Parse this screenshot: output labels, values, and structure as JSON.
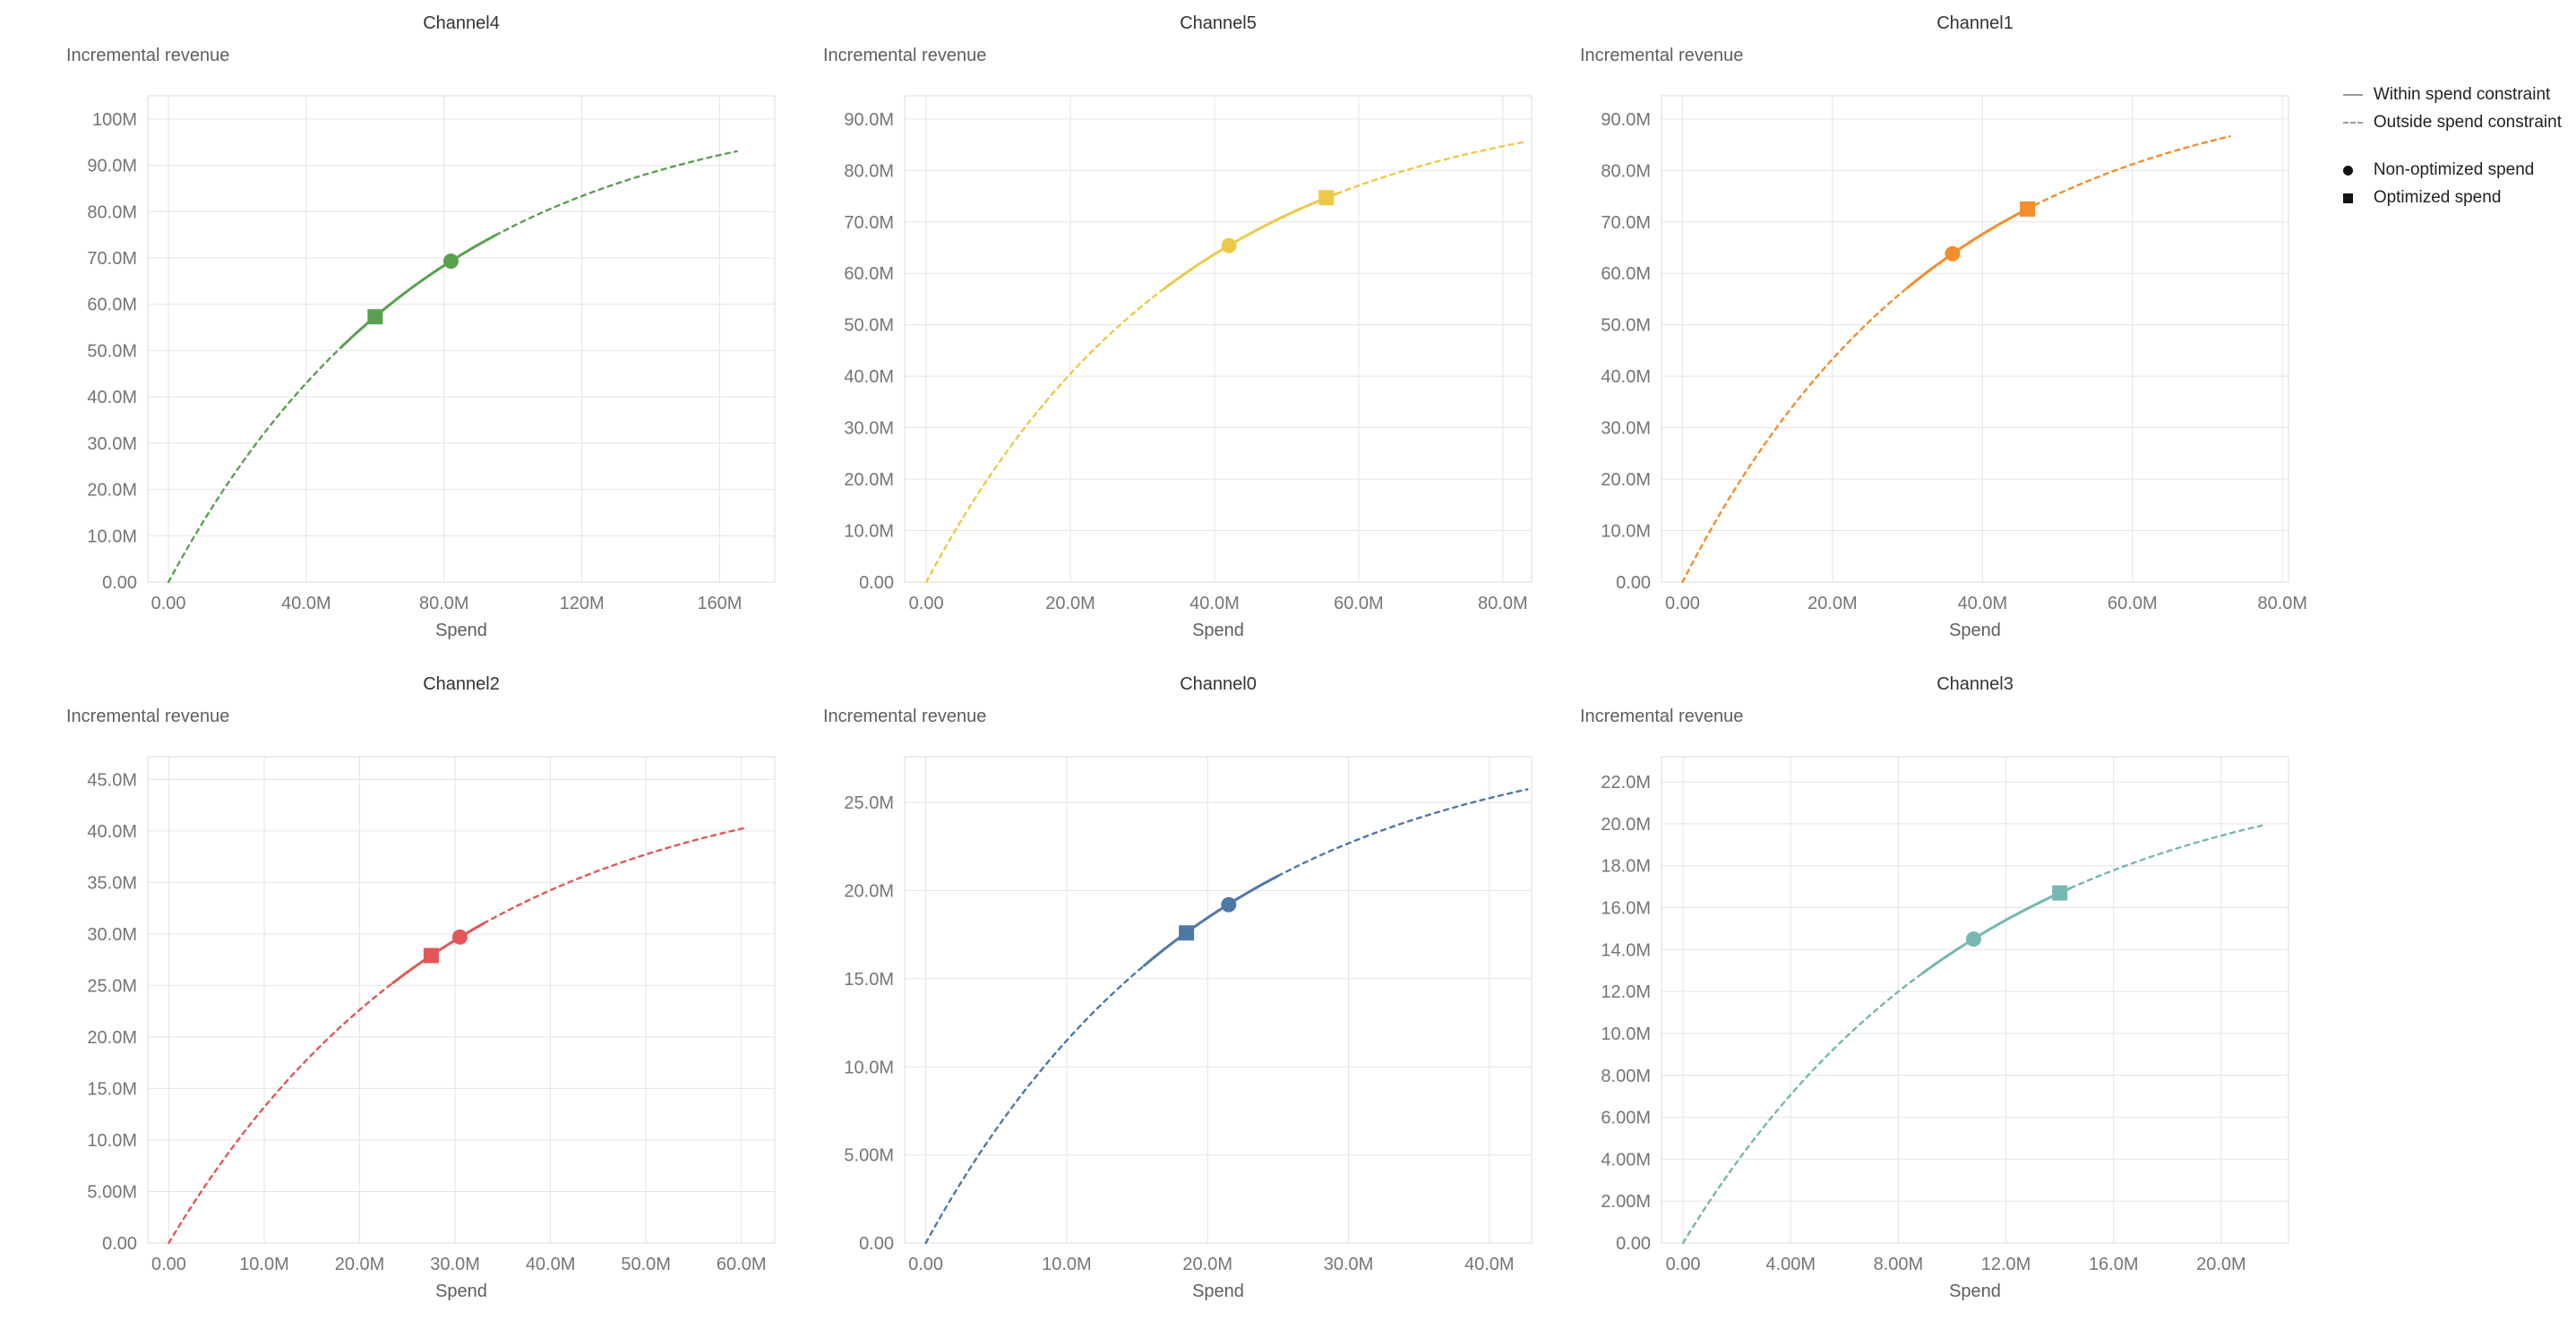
{
  "legend": {
    "items": [
      {
        "glyph": "solid-line",
        "label": "Within spend constraint"
      },
      {
        "glyph": "dashed-line",
        "label": "Outside spend constraint"
      },
      {
        "glyph": "circle",
        "label": "Non-optimized spend"
      },
      {
        "glyph": "square",
        "label": "Optimized spend"
      }
    ]
  },
  "chart_data": [
    {
      "type": "line",
      "title": "Channel4",
      "xlabel": "Spend",
      "ylabel": "Incremental revenue",
      "color": "#59a14f",
      "units": "millions",
      "xlim": [
        -6,
        176
      ],
      "ylim": [
        0,
        105
      ],
      "x_tick_values": [
        0,
        40,
        80,
        120,
        160
      ],
      "x_tick_labels": [
        "0.00",
        "40.0M",
        "80.0M",
        "120M",
        "160M"
      ],
      "y_tick_values": [
        0,
        10,
        20,
        30,
        40,
        50,
        60,
        70,
        80,
        90,
        100
      ],
      "y_tick_labels": [
        "0.00",
        "10.0M",
        "20.0M",
        "30.0M",
        "40.0M",
        "50.0M",
        "60.0M",
        "70.0M",
        "80.0M",
        "90.0M",
        "100M"
      ],
      "curve": {
        "model": "y = ymax*(1-exp(-x/tau))",
        "ymax": 105,
        "tau": 76,
        "x_start": 0,
        "x_end": 165
      },
      "solid_range": [
        50,
        95
      ],
      "points": {
        "non_optimized_spend": {
          "marker": "circle",
          "x": 82,
          "y": 69.3
        },
        "optimized_spend": {
          "marker": "square",
          "x": 60,
          "y": 57.3
        },
        "curve_end": {
          "x": 165,
          "y": 93.0
        }
      }
    },
    {
      "type": "line",
      "title": "Channel5",
      "xlabel": "Spend",
      "ylabel": "Incremental revenue",
      "color": "#edc948",
      "units": "millions",
      "xlim": [
        -3,
        84
      ],
      "ylim": [
        0,
        94.5
      ],
      "x_tick_values": [
        0,
        20,
        40,
        60,
        80
      ],
      "x_tick_labels": [
        "0.00",
        "20.0M",
        "40.0M",
        "60.0M",
        "80.0M"
      ],
      "y_tick_values": [
        0,
        10,
        20,
        30,
        40,
        50,
        60,
        70,
        80,
        90
      ],
      "y_tick_labels": [
        "0.00",
        "10.0M",
        "20.0M",
        "30.0M",
        "40.0M",
        "50.0M",
        "60.0M",
        "70.0M",
        "80.0M",
        "90.0M"
      ],
      "curve": {
        "model": "y = ymax*(1-exp(-x/tau))",
        "ymax": 95,
        "tau": 36,
        "x_start": 0,
        "x_end": 83
      },
      "solid_range": [
        33,
        57
      ],
      "points": {
        "non_optimized_spend": {
          "marker": "circle",
          "x": 42,
          "y": 65.4
        },
        "optimized_spend": {
          "marker": "square",
          "x": 55.5,
          "y": 74.7
        },
        "curve_end": {
          "x": 83,
          "y": 85.5
        }
      }
    },
    {
      "type": "line",
      "title": "Channel1",
      "xlabel": "Spend",
      "ylabel": "Incremental revenue",
      "color": "#f28e2b",
      "units": "millions",
      "xlim": [
        -2.8,
        80.8
      ],
      "ylim": [
        0,
        94.5
      ],
      "x_tick_values": [
        0,
        20,
        40,
        60,
        80
      ],
      "x_tick_labels": [
        "0.00",
        "20.0M",
        "40.0M",
        "60.0M",
        "80.0M"
      ],
      "y_tick_values": [
        0,
        10,
        20,
        30,
        40,
        50,
        60,
        70,
        80,
        90
      ],
      "y_tick_labels": [
        "0.00",
        "10.0M",
        "20.0M",
        "30.0M",
        "40.0M",
        "50.0M",
        "60.0M",
        "70.0M",
        "80.0M",
        "90.0M"
      ],
      "curve": {
        "model": "y = ymax*(1-exp(-x/tau))",
        "ymax": 98.5,
        "tau": 34.5,
        "x_start": 0,
        "x_end": 73
      },
      "solid_range": [
        30,
        47
      ],
      "points": {
        "non_optimized_spend": {
          "marker": "circle",
          "x": 36,
          "y": 63.8
        },
        "optimized_spend": {
          "marker": "square",
          "x": 46,
          "y": 72.5
        },
        "curve_end": {
          "x": 73,
          "y": 86.6
        }
      }
    },
    {
      "type": "line",
      "title": "Channel2",
      "xlabel": "Spend",
      "ylabel": "Incremental revenue",
      "color": "#e15759",
      "units": "millions",
      "xlim": [
        -2.2,
        63.5
      ],
      "ylim": [
        0,
        47.2
      ],
      "x_tick_values": [
        0,
        10,
        20,
        30,
        40,
        50,
        60
      ],
      "x_tick_labels": [
        "0.00",
        "10.0M",
        "20.0M",
        "30.0M",
        "40.0M",
        "50.0M",
        "60.0M"
      ],
      "y_tick_values": [
        0,
        5,
        10,
        15,
        20,
        25,
        30,
        35,
        40,
        45
      ],
      "y_tick_labels": [
        "0.00",
        "5.00M",
        "10.0M",
        "15.0M",
        "20.0M",
        "25.0M",
        "30.0M",
        "35.0M",
        "40.0M",
        "45.0M"
      ],
      "curve": {
        "model": "y = ymax*(1-exp(-x/tau))",
        "ymax": 46.5,
        "tau": 30,
        "x_start": 0,
        "x_end": 60.5
      },
      "solid_range": [
        23.5,
        33
      ],
      "points": {
        "non_optimized_spend": {
          "marker": "circle",
          "x": 30.5,
          "y": 29.7
        },
        "optimized_spend": {
          "marker": "square",
          "x": 27.5,
          "y": 27.9
        },
        "curve_end": {
          "x": 60.5,
          "y": 40.3
        }
      }
    },
    {
      "type": "line",
      "title": "Channel0",
      "xlabel": "Spend",
      "ylabel": "Incremental revenue",
      "color": "#4e79a7",
      "units": "millions",
      "xlim": [
        -1.5,
        43
      ],
      "ylim": [
        0,
        27.6
      ],
      "x_tick_values": [
        0,
        10,
        20,
        30,
        40
      ],
      "x_tick_labels": [
        "0.00",
        "10.0M",
        "20.0M",
        "30.0M",
        "40.0M"
      ],
      "y_tick_values": [
        0,
        5,
        10,
        15,
        20,
        25
      ],
      "y_tick_labels": [
        "0.00",
        "5.00M",
        "10.0M",
        "15.0M",
        "20.0M",
        "25.0M"
      ],
      "curve": {
        "model": "y = ymax*(1-exp(-x/tau))",
        "ymax": 29.2,
        "tau": 20,
        "x_start": 0,
        "x_end": 42.7
      },
      "solid_range": [
        15.5,
        25
      ],
      "points": {
        "non_optimized_spend": {
          "marker": "circle",
          "x": 21.5,
          "y": 19.2
        },
        "optimized_spend": {
          "marker": "square",
          "x": 18.5,
          "y": 17.6
        },
        "curve_end": {
          "x": 42.7,
          "y": 25.8
        }
      }
    },
    {
      "type": "line",
      "title": "Channel3",
      "xlabel": "Spend",
      "ylabel": "Incremental revenue",
      "color": "#76b7b2",
      "units": "millions",
      "xlim": [
        -0.8,
        22.5
      ],
      "ylim": [
        0,
        23.2
      ],
      "x_tick_values": [
        0,
        4,
        8,
        12,
        16,
        20
      ],
      "x_tick_labels": [
        "0.00",
        "4.00M",
        "8.00M",
        "12.0M",
        "16.0M",
        "20.0M"
      ],
      "y_tick_values": [
        0,
        2,
        4,
        6,
        8,
        10,
        12,
        14,
        16,
        18,
        20,
        22
      ],
      "y_tick_labels": [
        "0.00",
        "2.00M",
        "4.00M",
        "6.00M",
        "8.00M",
        "10.0M",
        "12.0M",
        "14.0M",
        "16.0M",
        "18.0M",
        "20.0M",
        "22.0M"
      ],
      "curve": {
        "model": "y = ymax*(1-exp(-x/tau))",
        "ymax": 23.2,
        "tau": 11,
        "x_start": 0,
        "x_end": 21.5
      },
      "solid_range": [
        8.9,
        14.4
      ],
      "points": {
        "non_optimized_spend": {
          "marker": "circle",
          "x": 10.8,
          "y": 14.5
        },
        "optimized_spend": {
          "marker": "square",
          "x": 14,
          "y": 16.7
        },
        "curve_end": {
          "x": 21.5,
          "y": 19.9
        }
      }
    }
  ]
}
